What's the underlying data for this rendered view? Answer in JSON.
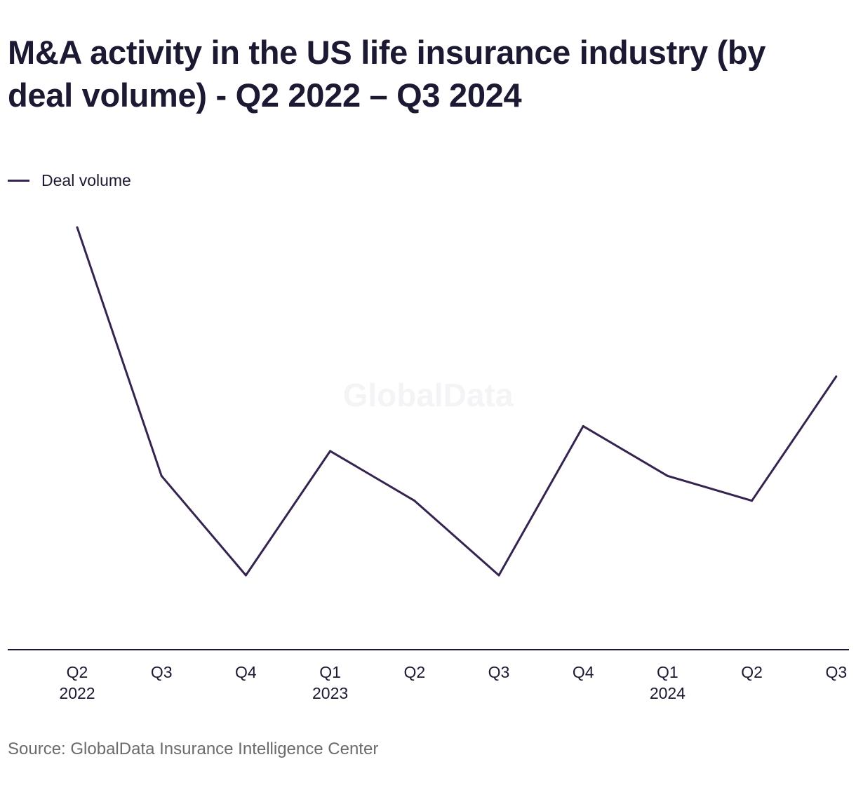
{
  "title": "M&A activity in the US life insurance industry (by deal volume) - Q2 2022 – Q3 2024",
  "watermark": "GlobalData",
  "source": "Source: GlobalData Insurance Intelligence Center",
  "colors": {
    "line": "#35244f",
    "text": "#1c1a33",
    "axis": "#1c1a33",
    "source": "#6b6b6b"
  },
  "chart_data": {
    "type": "line",
    "categories": [
      [
        "Q2",
        "2022"
      ],
      [
        "Q3"
      ],
      [
        "Q4"
      ],
      [
        "Q1",
        "2023"
      ],
      [
        "Q2"
      ],
      [
        "Q3"
      ],
      [
        "Q4"
      ],
      [
        "Q1",
        "2024"
      ],
      [
        "Q2"
      ],
      [
        "Q3"
      ]
    ],
    "series": [
      {
        "name": "Deal volume",
        "values": [
          29,
          19,
          15,
          20,
          18,
          15,
          21,
          19,
          18,
          23
        ]
      }
    ],
    "ylim": [
      12,
      30
    ],
    "grid": false,
    "y_axis_shown": false,
    "legend_position": "top-left"
  }
}
